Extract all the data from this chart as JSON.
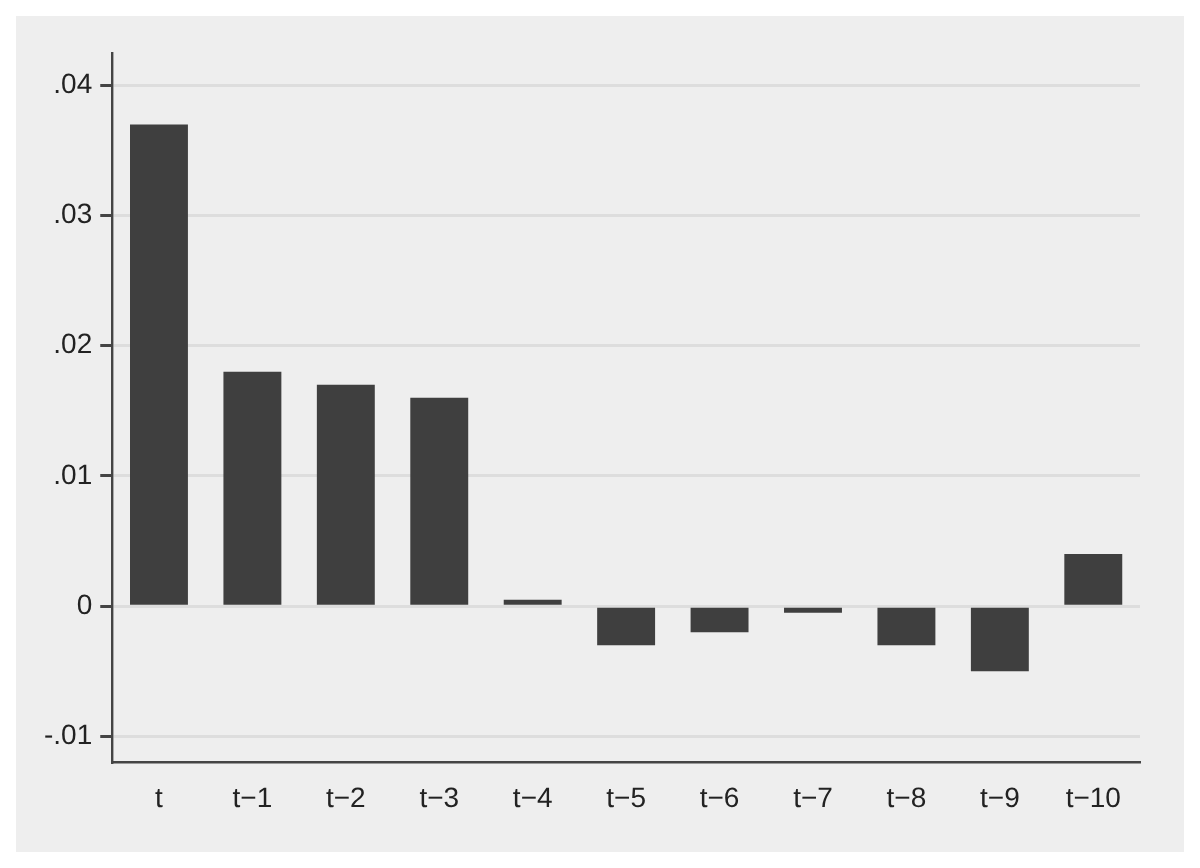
{
  "chart_data": {
    "type": "bar",
    "categories": [
      "t",
      "t−1",
      "t−2",
      "t−3",
      "t−4",
      "t−5",
      "t−6",
      "t−7",
      "t−8",
      "t−9",
      "t−10"
    ],
    "values": [
      0.037,
      0.018,
      0.017,
      0.016,
      0.0005,
      -0.003,
      -0.002,
      -0.0005,
      -0.003,
      -0.005,
      0.004
    ],
    "color": "#3f3f3f",
    "ylim": [
      -0.012,
      0.0425
    ],
    "yticks": [
      {
        "value": -0.01,
        "label": "-.01"
      },
      {
        "value": 0,
        "label": "0"
      },
      {
        "value": 0.01,
        "label": ".01"
      },
      {
        "value": 0.02,
        "label": ".02"
      },
      {
        "value": 0.03,
        "label": ".03"
      },
      {
        "value": 0.04,
        "label": ".04"
      }
    ],
    "grid": "y",
    "legend": false
  }
}
